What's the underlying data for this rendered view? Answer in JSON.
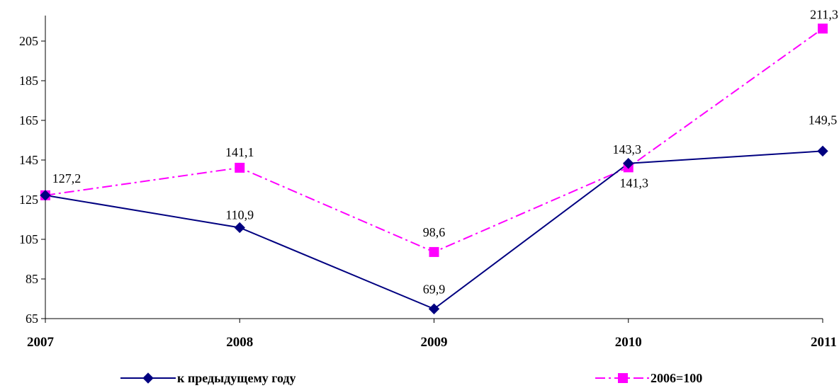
{
  "chart_data": {
    "type": "line",
    "title": "",
    "xlabel": "",
    "ylabel": "",
    "categories": [
      "2007",
      "2008",
      "2009",
      "2010",
      "2011"
    ],
    "ylim": [
      65,
      215
    ],
    "yticks": [
      65,
      85,
      105,
      125,
      145,
      165,
      185,
      205
    ],
    "grid": false,
    "legend_position": "bottom",
    "series": [
      {
        "name": "к предыдущему году",
        "values": [
          127.2,
          110.9,
          69.9,
          143.3,
          149.5
        ],
        "labels": [
          "",
          "110,9",
          "69,9",
          "143,3",
          "149,5"
        ],
        "color": "#000080",
        "marker": "diamond",
        "line_style": "solid"
      },
      {
        "name": "2006=100",
        "values": [
          127.2,
          141.1,
          98.6,
          141.3,
          211.3
        ],
        "labels": [
          "127,2",
          "141,1",
          "98,6",
          "141,3",
          "211,3"
        ],
        "color": "#FF00FF",
        "marker": "square",
        "line_style": "dash-dot"
      }
    ]
  }
}
